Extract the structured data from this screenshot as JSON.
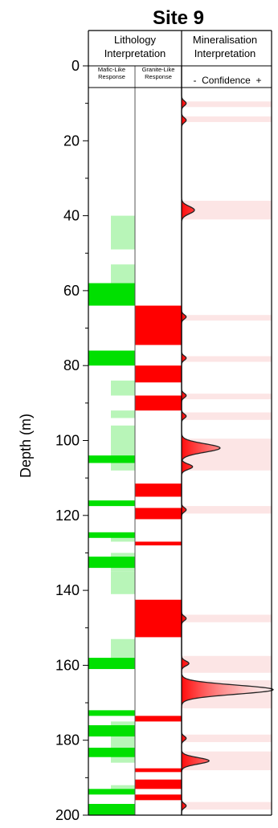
{
  "chart_data": {
    "type": "strip-log",
    "title": "Site 9",
    "ylabel": "Depth (m)",
    "ylim": [
      0,
      200
    ],
    "y_ticks": [
      0,
      20,
      40,
      60,
      80,
      100,
      120,
      140,
      160,
      180,
      200
    ],
    "y_ticks_minor": [
      10,
      30,
      50,
      70,
      90,
      110,
      130,
      150,
      170,
      190
    ],
    "columns": {
      "lithology": {
        "header": [
          "Lithology",
          "Interpretation"
        ],
        "mafic": {
          "subheader": [
            "Mafic-Like",
            "Response"
          ],
          "color_strong": "#00e000",
          "color_weak": "#b8f5b8",
          "weak_intervals": [
            [
              40,
              49
            ],
            [
              53,
              58
            ],
            [
              84,
              88
            ],
            [
              92,
              94
            ],
            [
              96,
              108
            ],
            [
              125,
              127
            ],
            [
              130,
              135
            ],
            [
              135,
              141
            ],
            [
              153,
              158
            ],
            [
              175,
              186
            ],
            [
              192,
              194
            ]
          ],
          "strong_intervals": [
            [
              58,
              64
            ],
            [
              76,
              80
            ],
            [
              104,
              106
            ],
            [
              116,
              117.5
            ],
            [
              124.5,
              126
            ],
            [
              131,
              134
            ],
            [
              158,
              161
            ],
            [
              172,
              173.5
            ],
            [
              176,
              179
            ],
            [
              182,
              184.5
            ],
            [
              193,
              194.5
            ],
            [
              197,
              200
            ]
          ]
        },
        "granite": {
          "subheader": [
            "Granite-Like",
            "Response"
          ],
          "color": "#ff0000",
          "intervals": [
            [
              64,
              74.5
            ],
            [
              80,
              84.5
            ],
            [
              88,
              92
            ],
            [
              111.5,
              115
            ],
            [
              118,
              121
            ],
            [
              127,
              128
            ],
            [
              142.5,
              152.5
            ],
            [
              173.5,
              175
            ],
            [
              187.5,
              188.5
            ],
            [
              190.5,
              193
            ],
            [
              194.5,
              196
            ]
          ]
        }
      },
      "mineralisation": {
        "header": [
          "Mineralisation",
          "Interpretation"
        ],
        "subheader": "-  Confidence  +",
        "color": "#f4a0a0",
        "bands": [
          [
            9.5,
            11
          ],
          [
            13.5,
            15
          ],
          [
            36,
            41
          ],
          [
            66.5,
            68
          ],
          [
            77.5,
            79
          ],
          [
            87.5,
            89
          ],
          [
            92.5,
            94.5
          ],
          [
            99.5,
            108
          ],
          [
            117.5,
            119.5
          ],
          [
            146.5,
            148.5
          ],
          [
            157.5,
            162
          ],
          [
            164,
            171.5
          ],
          [
            178.5,
            180.5
          ],
          [
            183,
            188
          ],
          [
            196.5,
            198.5
          ]
        ],
        "peaks": [
          {
            "depth": 10,
            "confidence": 0.05,
            "spread": 0.9
          },
          {
            "depth": 14.5,
            "confidence": 0.05,
            "spread": 0.9
          },
          {
            "depth": 38.5,
            "confidence": 0.14,
            "spread": 1.4
          },
          {
            "depth": 67,
            "confidence": 0.05,
            "spread": 0.8
          },
          {
            "depth": 78,
            "confidence": 0.05,
            "spread": 0.8
          },
          {
            "depth": 88,
            "confidence": 0.05,
            "spread": 0.8
          },
          {
            "depth": 93.5,
            "confidence": 0.05,
            "spread": 0.8
          },
          {
            "depth": 102,
            "confidence": 0.42,
            "spread": 1.6
          },
          {
            "depth": 107,
            "confidence": 0.12,
            "spread": 1.0
          },
          {
            "depth": 118.5,
            "confidence": 0.05,
            "spread": 0.8
          },
          {
            "depth": 147.5,
            "confidence": 0.05,
            "spread": 0.8
          },
          {
            "depth": 159.5,
            "confidence": 0.08,
            "spread": 0.9
          },
          {
            "depth": 166.5,
            "confidence": 1.0,
            "spread": 1.7
          },
          {
            "depth": 179.5,
            "confidence": 0.05,
            "spread": 0.8
          },
          {
            "depth": 185.5,
            "confidence": 0.3,
            "spread": 1.2
          },
          {
            "depth": 197.5,
            "confidence": 0.05,
            "spread": 0.8
          }
        ]
      }
    }
  }
}
